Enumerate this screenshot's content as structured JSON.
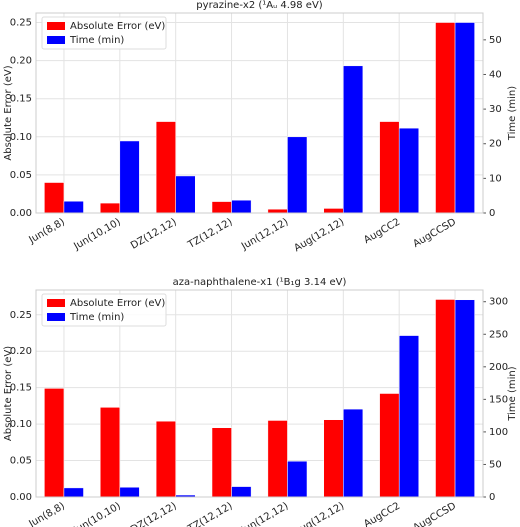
{
  "chart_data": [
    {
      "type": "bar",
      "title": "pyrazine-x2 (¹Aᵤ 4.98 eV)",
      "categories": [
        "Jun(8,8)",
        "Jun(10,10)",
        "DZ(12,12)",
        "TZ(12,12)",
        "Jun(12,12)",
        "Aug(12,12)",
        "AugCC2",
        "AugCCSD"
      ],
      "series": [
        {
          "name": "Absolute Error (eV)",
          "color": "#ff0000",
          "values": [
            0.04,
            0.013,
            0.12,
            0.015,
            0.005,
            0.006,
            0.12,
            0.25
          ]
        },
        {
          "name": "Time (min)",
          "color": "#0000ff",
          "axis": "y2",
          "values": [
            3.4,
            20.8,
            10.7,
            3.7,
            22,
            42.5,
            24.5,
            55
          ]
        }
      ],
      "ylabel": "Absolute Error (eV)",
      "y2label": "Time (min)",
      "ylim": [
        0,
        0.2625
      ],
      "yticks": [
        {
          "value": 0,
          "label": "0.00"
        },
        {
          "value": 0.05,
          "label": "0.05"
        },
        {
          "value": 0.1,
          "label": "0.10"
        },
        {
          "value": 0.15,
          "label": "0.15"
        },
        {
          "value": 0.2,
          "label": "0.20"
        },
        {
          "value": 0.25,
          "label": "0.25"
        }
      ],
      "y2lim": [
        0,
        57.75
      ],
      "y2ticks": [
        0,
        10,
        20,
        30,
        40,
        50
      ],
      "grid": true,
      "legend": "upper left"
    },
    {
      "type": "bar",
      "title": "aza-naphthalene-x1 (¹B₁g 3.14 eV)",
      "categories": [
        "Jun(8,8)",
        "Jun(10,10)",
        "DZ(12,12)",
        "TZ(12,12)",
        "Jun(12,12)",
        "Aug(12,12)",
        "AugCC2",
        "AugCCSD"
      ],
      "series": [
        {
          "name": "Absolute Error (eV)",
          "color": "#ff0000",
          "values": [
            0.149,
            0.123,
            0.104,
            0.095,
            0.105,
            0.106,
            0.142,
            0.271
          ]
        },
        {
          "name": "Time (min)",
          "color": "#0000ff",
          "axis": "y2",
          "values": [
            14,
            15,
            3,
            16,
            55,
            135,
            248,
            303
          ]
        }
      ],
      "ylabel": "Absolute Error (eV)",
      "y2label": "Time (min)",
      "ylim": [
        0,
        0.284
      ],
      "yticks": [
        {
          "value": 0,
          "label": "0.00"
        },
        {
          "value": 0.05,
          "label": "0.05"
        },
        {
          "value": 0.1,
          "label": "0.10"
        },
        {
          "value": 0.15,
          "label": "0.15"
        },
        {
          "value": 0.2,
          "label": "0.20"
        },
        {
          "value": 0.25,
          "label": "0.25"
        }
      ],
      "y2lim": [
        0,
        318
      ],
      "y2ticks": [
        0,
        50,
        100,
        150,
        200,
        250,
        300
      ],
      "grid": true,
      "legend": "upper left"
    }
  ]
}
